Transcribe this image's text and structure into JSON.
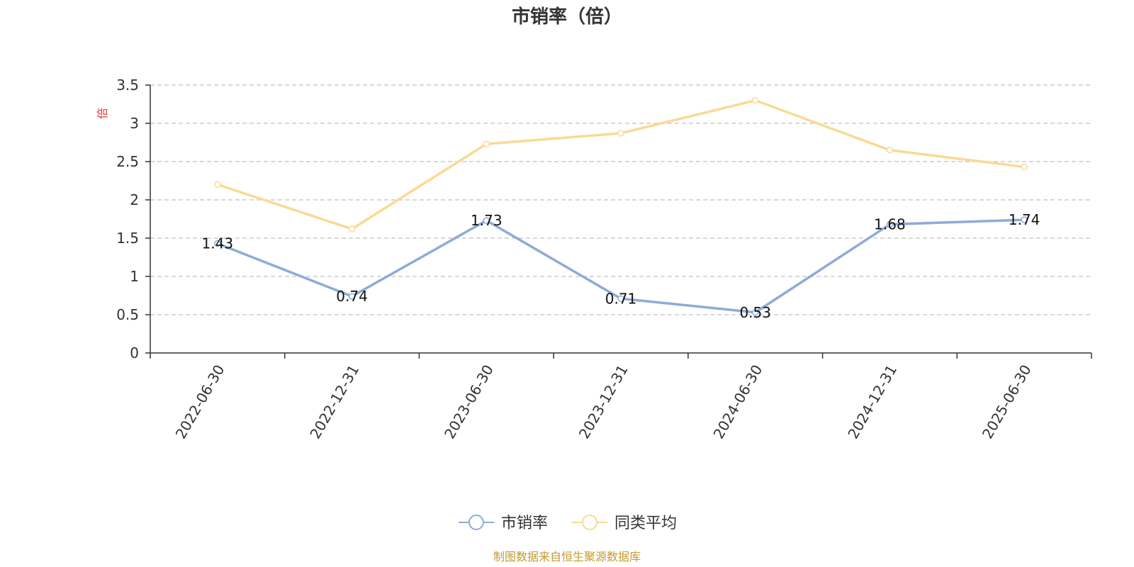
{
  "chart_data": {
    "type": "line",
    "title": "市销率（倍）",
    "ylabel": "倍",
    "ylim": [
      0,
      3.5
    ],
    "yticks": [
      "0",
      "0.5",
      "1",
      "1.5",
      "2",
      "2.5",
      "3",
      "3.5"
    ],
    "grid": true,
    "legend_position": "bottom-center",
    "categories": [
      "2022-06-30",
      "2022-12-31",
      "2023-06-30",
      "2023-12-31",
      "2024-06-30",
      "2024-12-31",
      "2025-06-30"
    ],
    "series": [
      {
        "name": "市销率",
        "color": "#8eabd8",
        "values": [
          1.43,
          0.74,
          1.73,
          0.71,
          0.53,
          1.68,
          1.74
        ],
        "labels": [
          "1.43",
          "0.74",
          "1.73",
          "0.71",
          "0.53",
          "1.68",
          "1.74"
        ]
      },
      {
        "name": "同类平均",
        "color": "#fbd994",
        "values": [
          2.2,
          1.62,
          2.73,
          2.87,
          3.3,
          2.65,
          2.43
        ]
      }
    ],
    "source": "制图数据来自恒生聚源数据库",
    "colors": {
      "unit_label": "#e63b3b",
      "source_text": "#c49a2e",
      "axis": "#333333",
      "grid": "#cccccc"
    }
  }
}
